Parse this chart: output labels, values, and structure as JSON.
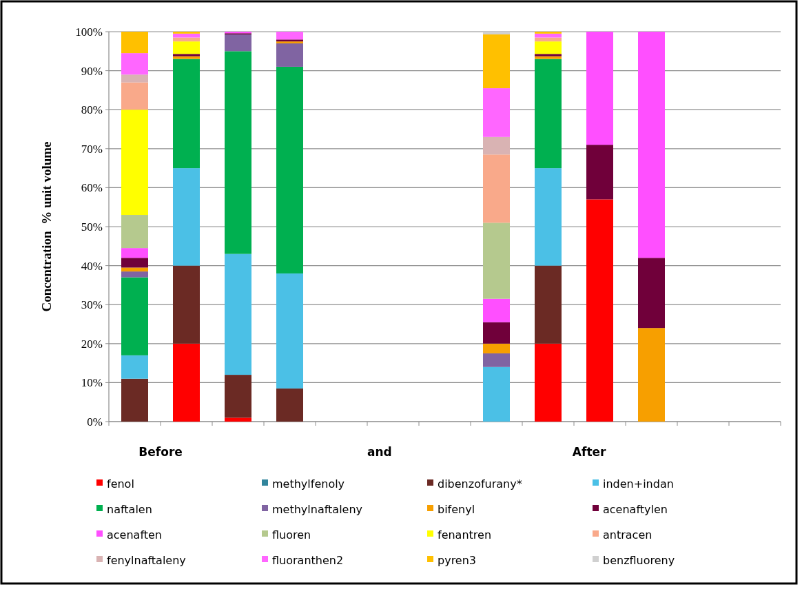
{
  "chart_data": {
    "type": "bar",
    "stacked": true,
    "ylabel": "Concentration  % unit volume",
    "categories": [
      null,
      null,
      null,
      null,
      null,
      null,
      null,
      null,
      null,
      null,
      null,
      null,
      null
    ],
    "ylim": [
      0,
      100
    ],
    "yticks": [
      {
        "value": 0,
        "label": "0%"
      },
      {
        "value": 10,
        "label": "10%"
      },
      {
        "value": 20,
        "label": "20%"
      },
      {
        "value": 30,
        "label": "30%"
      },
      {
        "value": 40,
        "label": "40%"
      },
      {
        "value": 50,
        "label": "50%"
      },
      {
        "value": 60,
        "label": "60%"
      },
      {
        "value": 70,
        "label": "70%"
      },
      {
        "value": 80,
        "label": "80%"
      },
      {
        "value": 90,
        "label": "90%"
      },
      {
        "value": 100,
        "label": "100%"
      }
    ],
    "grid": "y",
    "legend": "bottom",
    "annotations": [
      "Before",
      "and",
      "After"
    ],
    "series": [
      {
        "name": "fenol",
        "color": "#ff0000",
        "values": [
          0,
          20,
          1,
          0,
          null,
          null,
          null,
          0,
          20,
          57,
          0,
          null,
          null
        ]
      },
      {
        "name": "methylfenoly",
        "color": "#31859c",
        "values": [
          0,
          0,
          0,
          0,
          null,
          null,
          null,
          0,
          0,
          0,
          0,
          null,
          null
        ]
      },
      {
        "name": "dibenzofurany*",
        "color": "#6b2a24",
        "values": [
          11,
          20,
          11,
          8.5,
          null,
          null,
          null,
          0,
          20,
          0,
          0,
          null,
          null
        ]
      },
      {
        "name": "inden+indan",
        "color": "#4bc0e6",
        "values": [
          6,
          25,
          31,
          29.5,
          null,
          null,
          null,
          14,
          25,
          0,
          0,
          null,
          null
        ]
      },
      {
        "name": "naftalen",
        "color": "#00b050",
        "values": [
          20,
          28,
          52,
          53,
          null,
          null,
          null,
          0,
          28,
          0,
          0,
          null,
          null
        ]
      },
      {
        "name": "methylnaftaleny",
        "color": "#8064a2",
        "values": [
          1.5,
          0,
          4.3,
          6,
          null,
          null,
          null,
          3.5,
          0,
          0,
          0,
          null,
          null
        ]
      },
      {
        "name": "bifenyl",
        "color": "#f79f00",
        "values": [
          1,
          0.7,
          0,
          0.5,
          null,
          null,
          null,
          2.5,
          0.7,
          0,
          24,
          null,
          null
        ]
      },
      {
        "name": "acenaftylen",
        "color": "#70003a",
        "values": [
          2.5,
          0.6,
          0.3,
          0.5,
          null,
          null,
          null,
          5.5,
          0.6,
          14,
          18,
          null,
          null
        ]
      },
      {
        "name": "acenaften",
        "color": "#ff4fff",
        "values": [
          2.5,
          0,
          0.4,
          0,
          null,
          null,
          null,
          6,
          0,
          29,
          58,
          null,
          null
        ]
      },
      {
        "name": "fluoren",
        "color": "#b5c98e",
        "values": [
          8.5,
          0,
          0,
          0,
          null,
          null,
          null,
          19.5,
          0,
          0,
          0,
          null,
          null
        ]
      },
      {
        "name": "fenantren",
        "color": "#ffff00",
        "values": [
          27,
          3.2,
          0,
          0,
          null,
          null,
          null,
          0,
          3.2,
          0,
          0,
          null,
          null
        ]
      },
      {
        "name": "antracen",
        "color": "#f9a98a",
        "values": [
          7,
          1,
          0,
          0,
          null,
          null,
          null,
          17.5,
          1,
          0,
          0,
          null,
          null
        ]
      },
      {
        "name": "fenylnaftaleny",
        "color": "#d9b3b3",
        "values": [
          2,
          0,
          0,
          0,
          null,
          null,
          null,
          4.5,
          0,
          0,
          0,
          null,
          null
        ]
      },
      {
        "name": "fluoranthen2",
        "color": "#ff66ff",
        "values": [
          5.5,
          1,
          0,
          2,
          null,
          null,
          null,
          12.5,
          1,
          0,
          0,
          null,
          null
        ]
      },
      {
        "name": "pyren3",
        "color": "#ffc000",
        "values": [
          5.5,
          0.5,
          0,
          0,
          null,
          null,
          null,
          13.8,
          0.5,
          0,
          0,
          null,
          null
        ]
      },
      {
        "name": "benzfluoreny",
        "color": "#d0d0d0",
        "values": [
          0,
          0,
          0,
          0,
          null,
          null,
          null,
          0.7,
          0,
          0,
          0,
          null,
          null
        ]
      }
    ]
  }
}
